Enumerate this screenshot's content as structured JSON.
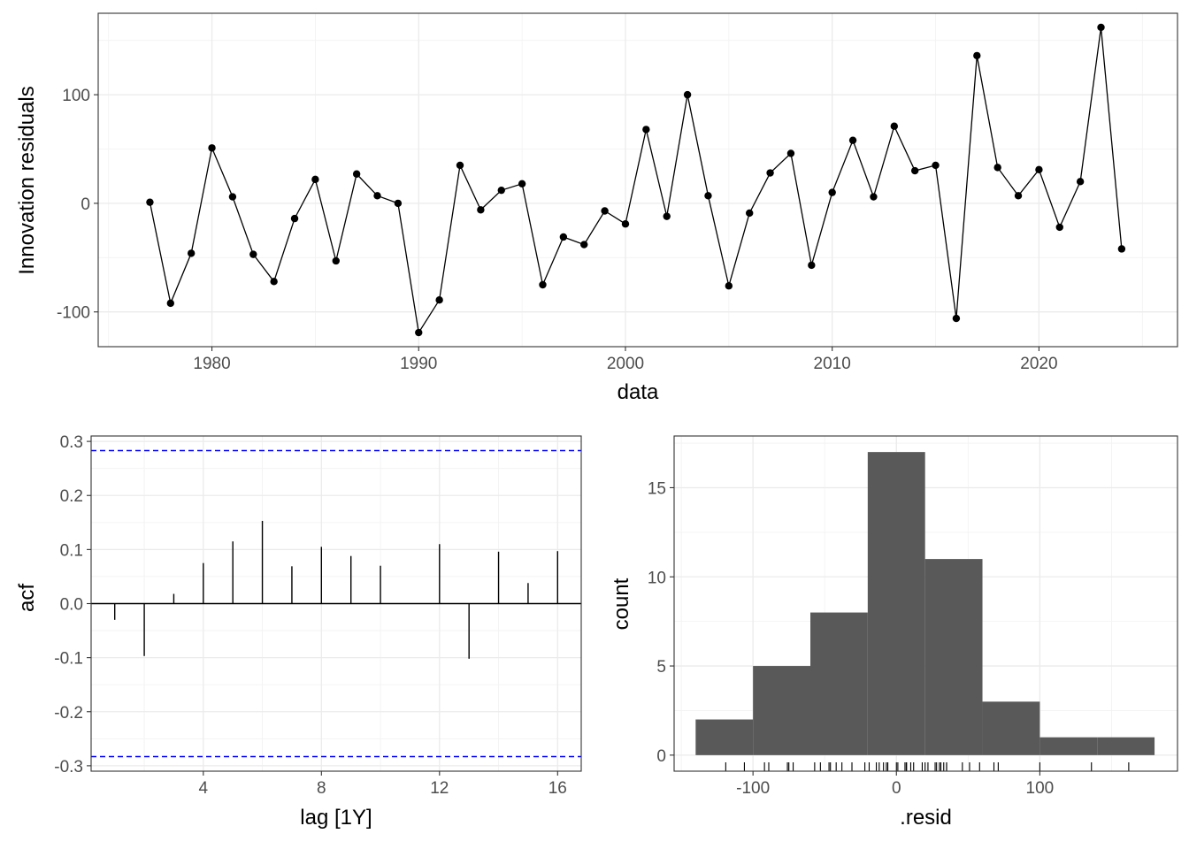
{
  "chart_data": [
    {
      "type": "line",
      "xlabel": "data",
      "ylabel": "Innovation residuals",
      "xlim": [
        1974.5,
        2026.7
      ],
      "ylim": [
        -132,
        175
      ],
      "x_ticks": [
        1980,
        1990,
        2000,
        2010,
        2020
      ],
      "y_ticks": [
        -100,
        0,
        100
      ],
      "x_tick_labels": [
        "1980",
        "1990",
        "2000",
        "2010",
        "2020"
      ],
      "y_tick_labels": [
        "-100",
        "0",
        "100"
      ],
      "grid": true,
      "x": [
        1977,
        1978,
        1979,
        1980,
        1981,
        1982,
        1983,
        1984,
        1985,
        1986,
        1987,
        1988,
        1989,
        1990,
        1991,
        1992,
        1993,
        1994,
        1995,
        1996,
        1997,
        1998,
        1999,
        2000,
        2001,
        2002,
        2003,
        2004,
        2005,
        2006,
        2007,
        2008,
        2009,
        2010,
        2011,
        2012,
        2013,
        2014,
        2015,
        2016,
        2017,
        2018,
        2019,
        2020,
        2021,
        2022,
        2023,
        2024
      ],
      "values": [
        1,
        -92,
        -46,
        51,
        6,
        -47,
        -72,
        -14,
        22,
        -53,
        27,
        7,
        0,
        -119,
        -89,
        35,
        -6,
        12,
        18,
        -75,
        -31,
        -38,
        -7,
        -19,
        68,
        -12,
        100,
        7,
        -76,
        -9,
        28,
        46,
        -57,
        10,
        58,
        6,
        71,
        30,
        35,
        -106,
        136,
        33,
        7,
        31,
        -22,
        20,
        162,
        -42
      ]
    },
    {
      "type": "bar",
      "xlabel": "lag [1Y]",
      "ylabel": "acf",
      "xlim": [
        0.2,
        16.8
      ],
      "ylim": [
        -0.31,
        0.31
      ],
      "x_ticks": [
        4,
        8,
        12,
        16
      ],
      "y_ticks": [
        -0.3,
        -0.2,
        -0.1,
        0.0,
        0.1,
        0.2,
        0.3
      ],
      "x_tick_labels": [
        "4",
        "8",
        "12",
        "16"
      ],
      "y_tick_labels": [
        "-0.3",
        "-0.2",
        "-0.1",
        "0.0",
        "0.1",
        "0.2",
        "0.3"
      ],
      "grid": true,
      "lags": [
        1,
        2,
        3,
        4,
        5,
        6,
        7,
        8,
        9,
        10,
        11,
        12,
        13,
        14,
        15,
        16
      ],
      "values": [
        -0.03,
        -0.097,
        0.018,
        0.075,
        0.115,
        0.153,
        0.069,
        0.105,
        0.088,
        0.07,
        0,
        0.11,
        -0.102,
        0.096,
        0.038,
        0.097
      ],
      "confidence_bounds": [
        0.283,
        -0.283
      ],
      "bound_color": "#0000ff"
    },
    {
      "type": "histogram",
      "xlabel": ".resid",
      "ylabel": "count",
      "xlim": [
        -155,
        196
      ],
      "ylim": [
        -0.9,
        17.9
      ],
      "x_ticks": [
        -100,
        0,
        100
      ],
      "y_ticks": [
        0,
        5,
        10,
        15
      ],
      "x_tick_labels": [
        "-100",
        "0",
        "100"
      ],
      "y_tick_labels": [
        "0",
        "5",
        "10",
        "15"
      ],
      "grid": true,
      "bin_edges": [
        -140,
        -100,
        -60,
        -20,
        20,
        60,
        100,
        140,
        180
      ],
      "counts": [
        2,
        5,
        8,
        17,
        11,
        3,
        1,
        1
      ],
      "bar_color": "#595959",
      "rug": [
        -119,
        -106,
        -92,
        -89,
        -76,
        -75,
        -72,
        -57,
        -53,
        -47,
        -46,
        -42,
        -38,
        -31,
        -22,
        -19,
        -14,
        -12,
        -9,
        -7,
        -6,
        0,
        1,
        6,
        6,
        7,
        7,
        7,
        10,
        12,
        18,
        20,
        22,
        27,
        28,
        30,
        31,
        33,
        35,
        35,
        46,
        51,
        58,
        68,
        71,
        100,
        136,
        162
      ]
    }
  ]
}
